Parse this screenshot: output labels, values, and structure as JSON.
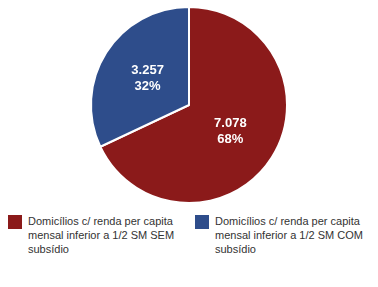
{
  "chart_data": {
    "type": "pie",
    "categories": [
      "Domicílios c/ renda per capita mensal inferior a 1/2 SM SEM subsídio",
      "Domicílios c/ renda per capita mensal inferior a 1/2 SM COM subsídio"
    ],
    "values": [
      68,
      32
    ],
    "value_labels": [
      "7.078\n68%",
      "3.257\n32%"
    ],
    "data_labels": true,
    "colors": [
      "#8B1A1A",
      "#2E4D8B"
    ],
    "legend": "bottom"
  }
}
